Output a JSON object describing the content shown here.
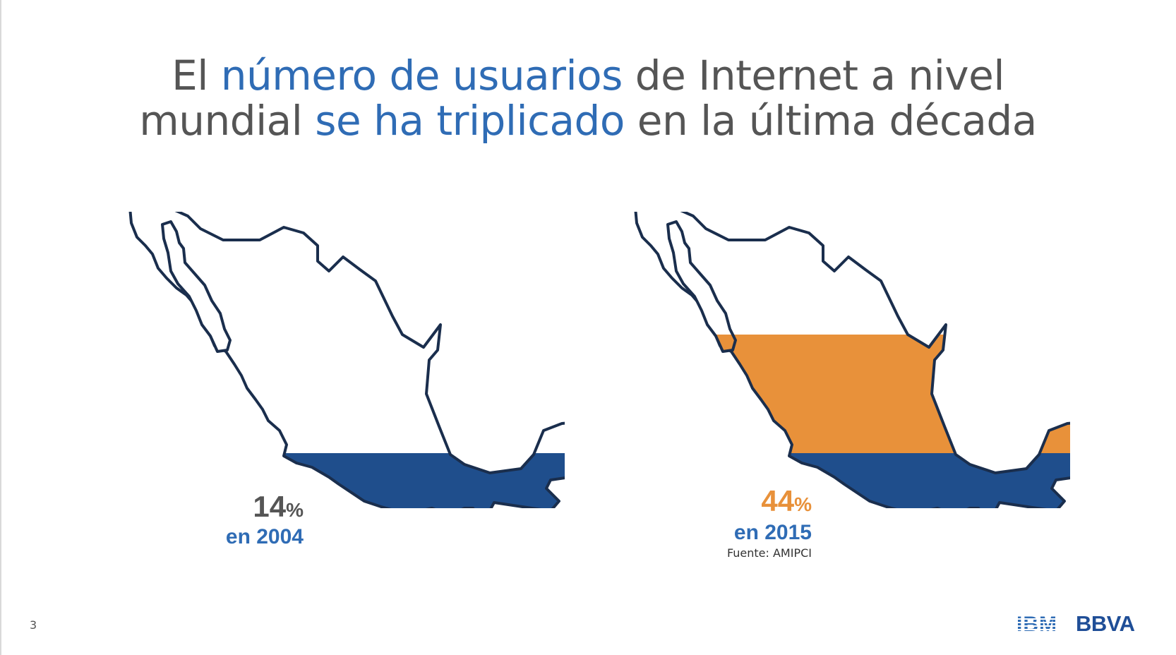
{
  "title": {
    "line1": [
      {
        "text": "El ",
        "highlight": false
      },
      {
        "text": "número de usuarios",
        "highlight": true
      },
      {
        "text": " de Internet a nivel",
        "highlight": false
      }
    ],
    "line2": [
      {
        "text": "mundial ",
        "highlight": false
      },
      {
        "text": "se ha triplicado",
        "highlight": true
      },
      {
        "text": " en la última década",
        "highlight": false
      }
    ]
  },
  "maps": [
    {
      "name": "map-2004",
      "value": "14",
      "unit": "%",
      "year_label": "en 2004",
      "share": 0.14
    },
    {
      "name": "map-2015",
      "value": "44",
      "unit": "%",
      "year_label": "en 2015",
      "share": 0.44,
      "source": "Fuente: AMIPCI"
    }
  ],
  "colors": {
    "highlight": "#2f6cb5",
    "value_2004": "#555555",
    "value_2015": "#e8913a",
    "fill_2004": "#1f4e8c",
    "fill_2015": "#e8913a",
    "outline": "#1a2e4d"
  },
  "footer": {
    "page_number": "3",
    "logo_ibm": "IBM",
    "logo_bbva": "BBVA"
  }
}
